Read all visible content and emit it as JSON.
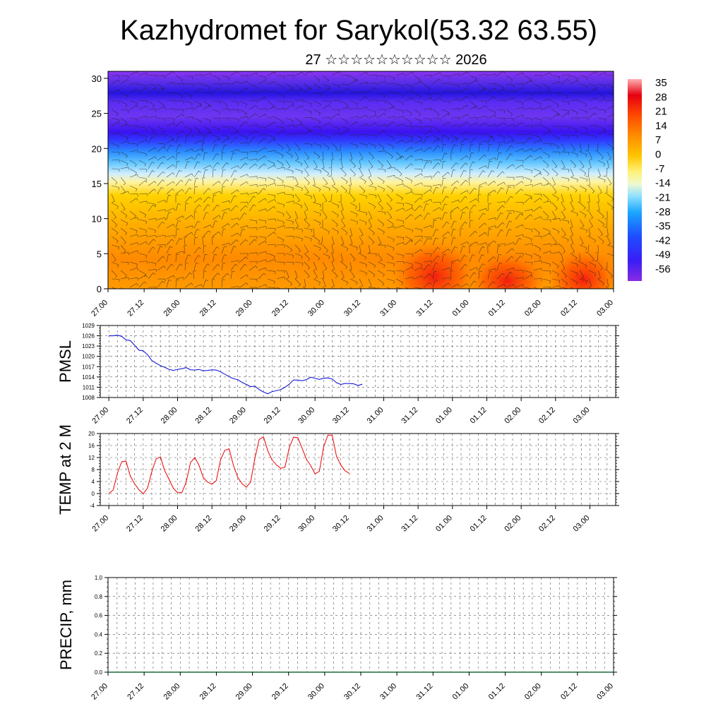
{
  "title": "Kazhydromet for Sarykol(53.32 63.55)",
  "subtitle": "27 ☆☆☆☆☆☆☆☆☆☆ 2026",
  "time_labels": [
    "27.00",
    "27.12",
    "28.00",
    "28.12",
    "29.00",
    "29.12",
    "30.00",
    "30.12",
    "31.00",
    "31.12",
    "01.00",
    "01.12",
    "02.00",
    "02.12",
    "03.00"
  ],
  "chart_data": [
    {
      "type": "heatmap",
      "name": "temperature-wind-section",
      "title": "Kazhydromet for Sarykol(53.32 63.55)",
      "ylabel": "",
      "ylim": [
        0,
        31
      ],
      "yticks": [
        0,
        5,
        10,
        15,
        20,
        25,
        30
      ],
      "x": [
        "27.00",
        "27.12",
        "28.00",
        "28.12",
        "29.00",
        "29.12",
        "30.00",
        "30.12",
        "31.00",
        "31.12",
        "01.00",
        "01.12",
        "02.00",
        "02.12",
        "03.00"
      ],
      "colorbar": {
        "labels": [
          "35",
          "28",
          "21",
          "14",
          "7",
          "0",
          "-7",
          "-14",
          "-21",
          "-28",
          "-35",
          "-42",
          "-49",
          "-56"
        ],
        "min": -60,
        "max": 38
      },
      "note": "Filled temperature contours with wind barbs overlay"
    },
    {
      "type": "line",
      "name": "pmsl",
      "ylabel": "PMSL",
      "ylim": [
        1008,
        1029
      ],
      "yticks": [
        "1008",
        "1011",
        "1014",
        "1017",
        "1020",
        "1023",
        "1026",
        "1029"
      ],
      "color": "#0000dd",
      "x_start": 0.25,
      "x_step": 0.125,
      "values": [
        1026.0,
        1026.0,
        1026.2,
        1025.8,
        1024.8,
        1024.6,
        1023.2,
        1021.8,
        1021.6,
        1020.5,
        1018.8,
        1018.0,
        1017.3,
        1016.8,
        1016.2,
        1015.9,
        1016.2,
        1016.4,
        1016.7,
        1016.1,
        1016.0,
        1016.2,
        1015.8,
        1015.9,
        1016.1,
        1016.0,
        1015.5,
        1014.8,
        1014.1,
        1013.5,
        1013.2,
        1012.4,
        1011.8,
        1011.2,
        1011.3,
        1010.3,
        1009.6,
        1009.1,
        1009.7,
        1010.0,
        1010.3,
        1011.0,
        1011.9,
        1013.1,
        1013.1,
        1012.9,
        1013.2,
        1013.9,
        1013.6,
        1013.3,
        1013.6,
        1013.7,
        1013.4,
        1012.3,
        1011.8,
        1012.1,
        1012.1,
        1012.0,
        1011.5,
        1011.9
      ]
    },
    {
      "type": "line",
      "name": "temp-2m",
      "ylabel": "TEMP at 2 M",
      "ylim": [
        -4,
        20
      ],
      "yticks": [
        "-4",
        "0",
        "4",
        "8",
        "12",
        "16",
        "20"
      ],
      "color": "#ee0000",
      "x_start": 0.25,
      "x_step": 0.125,
      "values": [
        0.0,
        1.2,
        6.8,
        10.6,
        10.8,
        5.8,
        3.2,
        1.3,
        -0.1,
        1.8,
        7.3,
        11.5,
        12.2,
        7.6,
        4.8,
        1.8,
        0.3,
        0.3,
        3.8,
        10.3,
        12.0,
        9.4,
        5.3,
        3.8,
        3.1,
        4.3,
        11.2,
        14.4,
        14.9,
        9.4,
        5.4,
        3.3,
        2.1,
        3.8,
        11.8,
        18.0,
        18.9,
        14.2,
        11.2,
        9.6,
        8.4,
        8.8,
        15.3,
        18.8,
        18.6,
        15.1,
        11.4,
        9.3,
        6.6,
        7.4,
        15.5,
        19.5,
        19.4,
        12.4,
        9.5,
        7.6,
        6.7
      ]
    },
    {
      "type": "line",
      "name": "precip",
      "ylabel": "PRECIP, mm",
      "ylim": [
        0,
        1
      ],
      "yticks": [
        "0.0",
        "0.2",
        "0.4",
        "0.6",
        "0.8",
        "1.0"
      ],
      "values": []
    }
  ]
}
